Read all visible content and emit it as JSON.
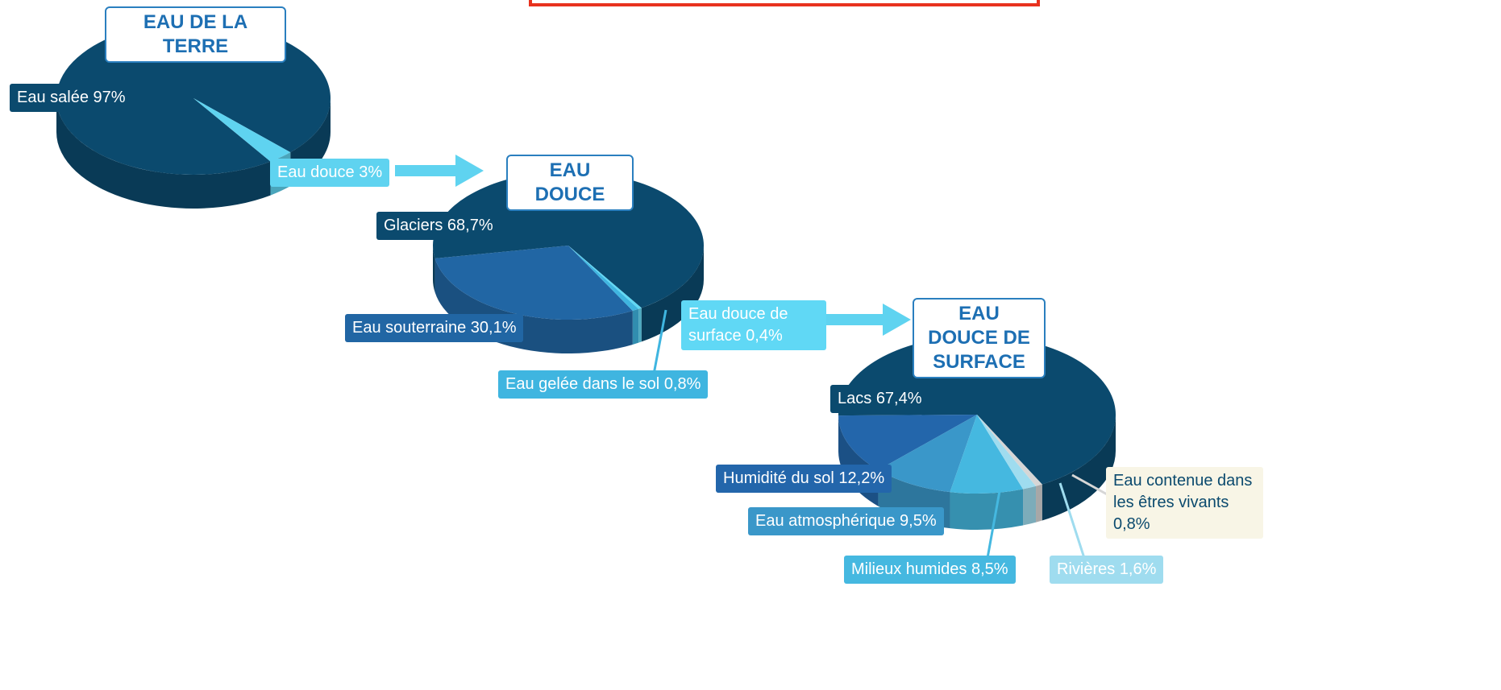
{
  "chart_data": [
    {
      "type": "pie",
      "title": "EAU DE LA TERRE",
      "categories": [
        "Eau salée",
        "Eau douce"
      ],
      "values": [
        97,
        3
      ],
      "value_labels": [
        "97%",
        "3%"
      ],
      "colors": [
        "#0b4a6e",
        "#5fd3f0"
      ]
    },
    {
      "type": "pie",
      "title": "EAU DOUCE",
      "categories": [
        "Glaciers",
        "Eau souterraine",
        "Eau gelée dans le sol",
        "Eau douce de surface"
      ],
      "values": [
        68.7,
        30.1,
        0.8,
        0.4
      ],
      "value_labels": [
        "68,7%",
        "30,1%",
        "0,8%",
        "0,4%"
      ],
      "colors": [
        "#0b4a6e",
        "#2166a4",
        "#3fb5e0",
        "#60d8f5"
      ]
    },
    {
      "type": "pie",
      "title": "EAU DOUCE DE SURFACE",
      "categories": [
        "Lacs",
        "Humidité du sol",
        "Eau atmosphérique",
        "Milieux humides",
        "Rivières",
        "Eau contenue dans les êtres vivants"
      ],
      "values": [
        67.4,
        12.2,
        9.5,
        8.5,
        1.6,
        0.8
      ],
      "value_labels": [
        "67,4%",
        "12,2%",
        "9,5%",
        "8,5%",
        "1,6%",
        "0,8%"
      ],
      "colors": [
        "#0b4a6e",
        "#2366ab",
        "#3a97c9",
        "#45b8e0",
        "#9fdcef",
        "#d6d6d6"
      ]
    }
  ]
}
